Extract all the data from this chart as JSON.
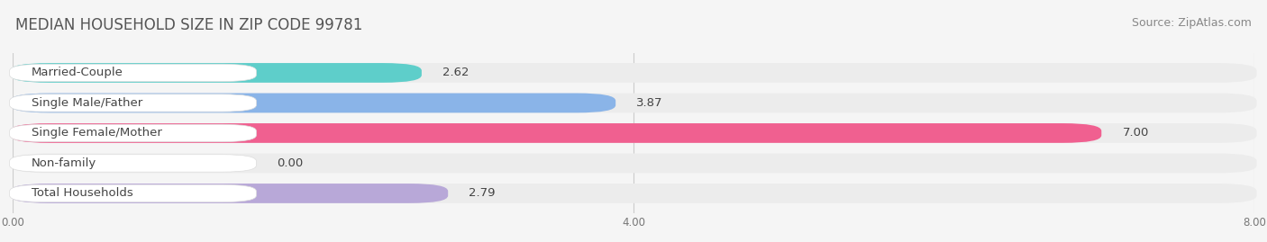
{
  "title": "MEDIAN HOUSEHOLD SIZE IN ZIP CODE 99781",
  "source": "Source: ZipAtlas.com",
  "categories": [
    "Married-Couple",
    "Single Male/Father",
    "Single Female/Mother",
    "Non-family",
    "Total Households"
  ],
  "values": [
    2.62,
    3.87,
    7.0,
    0.0,
    2.79
  ],
  "bar_colors": [
    "#5ececa",
    "#8ab4e8",
    "#f06090",
    "#f5c499",
    "#b8a8d8"
  ],
  "xlim": [
    0,
    8.0
  ],
  "xtick_labels": [
    "0.00",
    "4.00",
    "8.00"
  ],
  "xtick_vals": [
    0.0,
    4.0,
    8.0
  ],
  "value_labels": [
    "2.62",
    "3.87",
    "7.00",
    "0.00",
    "2.79"
  ],
  "background_color": "#f5f5f5",
  "row_bg_color": "#ececec",
  "title_fontsize": 12,
  "source_fontsize": 9,
  "label_fontsize": 9.5,
  "value_fontsize": 9.5,
  "bar_height": 0.62
}
